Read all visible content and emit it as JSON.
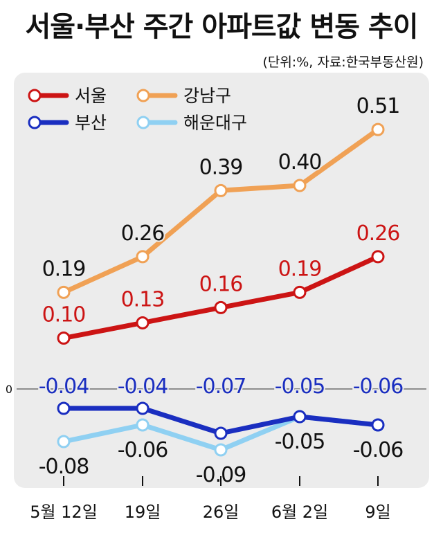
{
  "title": "서울·부산 주간 아파트값 변동 추이",
  "source": "(단위:%, 자료:한국부동산원)",
  "colors": {
    "panel": "#ececec",
    "seoul": "#cc1414",
    "gangnam": "#f0a155",
    "busan": "#1a2ec0",
    "haeundae": "#8fd0f2",
    "label_default": "#111111"
  },
  "chart_data": {
    "type": "line",
    "title": "서울·부산 주간 아파트값 변동 추이",
    "unit": "%",
    "categories": [
      "5월 12일",
      "19일",
      "26일",
      "6월 2일",
      "9일"
    ],
    "y_ticks": [
      "0"
    ],
    "series": [
      {
        "name": "서울",
        "color": "#cc1414",
        "values": [
          0.1,
          0.13,
          0.16,
          0.19,
          0.26
        ],
        "labels": [
          "0.10",
          "0.13",
          "0.16",
          "0.19",
          "0.26"
        ]
      },
      {
        "name": "강남구",
        "color": "#f0a155",
        "values": [
          0.19,
          0.26,
          0.39,
          0.4,
          0.51
        ],
        "labels": [
          "0.19",
          "0.26",
          "0.39",
          "0.40",
          "0.51"
        ]
      },
      {
        "name": "부산",
        "color": "#1a2ec0",
        "values": [
          -0.04,
          -0.04,
          -0.07,
          -0.05,
          -0.06
        ],
        "labels": [
          "-0.04",
          "-0.04",
          "-0.07",
          "-0.05",
          "-0.06"
        ]
      },
      {
        "name": "해운대구",
        "color": "#8fd0f2",
        "values": [
          -0.08,
          -0.06,
          -0.09,
          -0.05,
          -0.06
        ],
        "labels": [
          "-0.08",
          "-0.06",
          "-0.09",
          "-0.05",
          "-0.06"
        ]
      }
    ],
    "legend_position": "top-left",
    "grid": false
  }
}
